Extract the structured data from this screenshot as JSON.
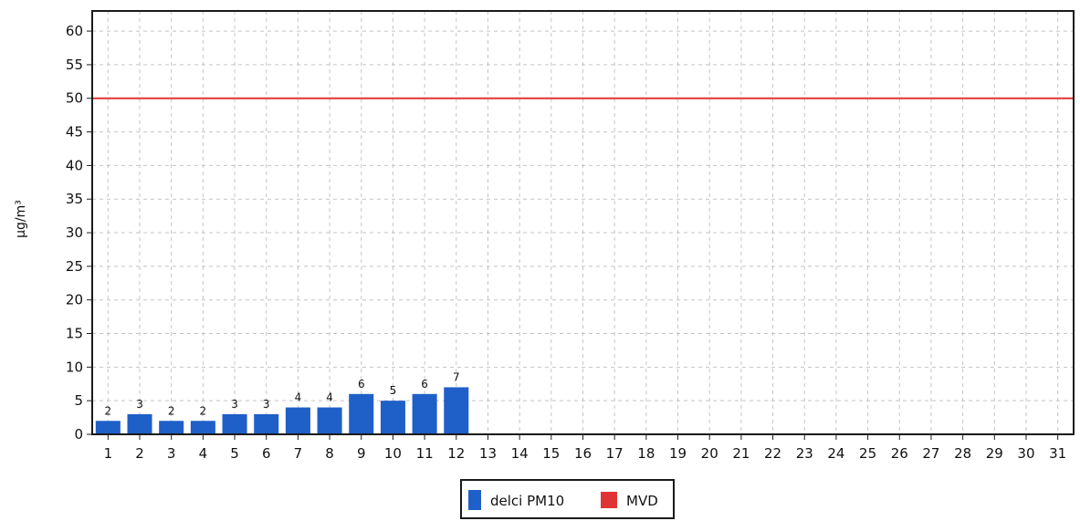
{
  "chart_data": {
    "type": "bar",
    "ylabel": "µg/m³",
    "ylim": [
      0,
      63
    ],
    "yticks": [
      0,
      5,
      10,
      15,
      20,
      25,
      30,
      35,
      40,
      45,
      50,
      55,
      60
    ],
    "categories": [
      "1",
      "2",
      "3",
      "4",
      "5",
      "6",
      "7",
      "8",
      "9",
      "10",
      "11",
      "12",
      "13",
      "14",
      "15",
      "16",
      "17",
      "18",
      "19",
      "20",
      "21",
      "22",
      "23",
      "24",
      "25",
      "26",
      "27",
      "28",
      "29",
      "30",
      "31"
    ],
    "series": [
      {
        "name": "delci PM10",
        "kind": "bar",
        "color": "#1f5fc8",
        "values": [
          2,
          3,
          2,
          2,
          3,
          3,
          4,
          4,
          6,
          5,
          6,
          7,
          null,
          null,
          null,
          null,
          null,
          null,
          null,
          null,
          null,
          null,
          null,
          null,
          null,
          null,
          null,
          null,
          null,
          null,
          null
        ],
        "data_labels": [
          "2",
          "3",
          "2",
          "2",
          "3",
          "3",
          "4",
          "4",
          "6",
          "5",
          "6",
          "7"
        ]
      },
      {
        "name": "MVD",
        "kind": "line",
        "color": "#e03434",
        "value": 50
      }
    ],
    "grid": true,
    "legend_placement": "bottom-center"
  }
}
